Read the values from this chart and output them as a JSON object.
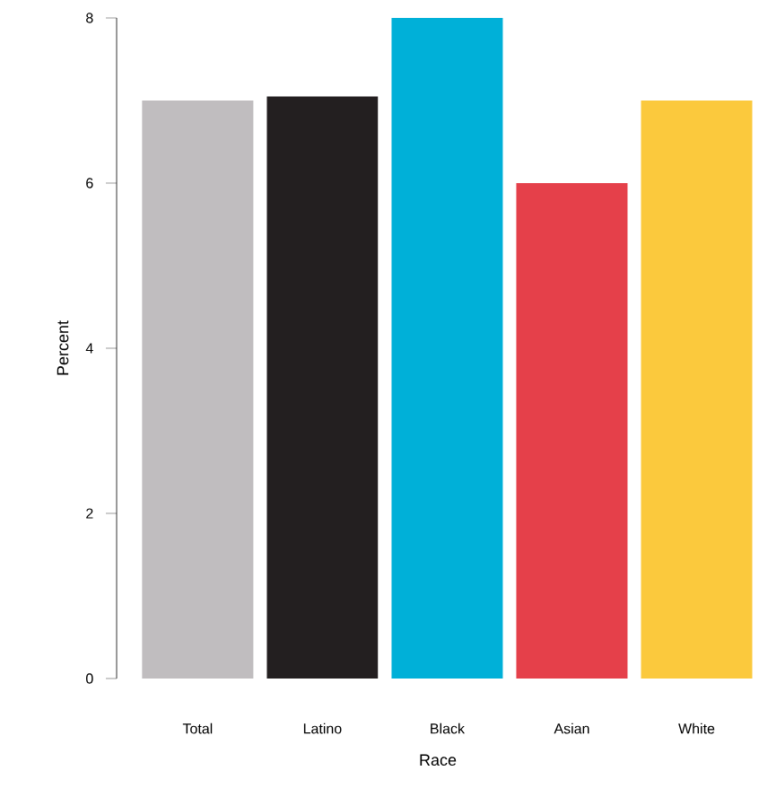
{
  "chart_data": {
    "type": "bar",
    "xlabel": "Race",
    "ylabel": "Percent",
    "categories": [
      "Total",
      "Latino",
      "Black",
      "Asian",
      "White"
    ],
    "values": [
      7,
      7.05,
      8,
      6,
      7
    ],
    "colors": [
      "#c0bdbf",
      "#231f20",
      "#00b0d8",
      "#e5404a",
      "#fbc93d"
    ],
    "ylim": [
      0,
      8
    ],
    "yticks": [
      0,
      2,
      4,
      6,
      8
    ],
    "grid": false
  }
}
